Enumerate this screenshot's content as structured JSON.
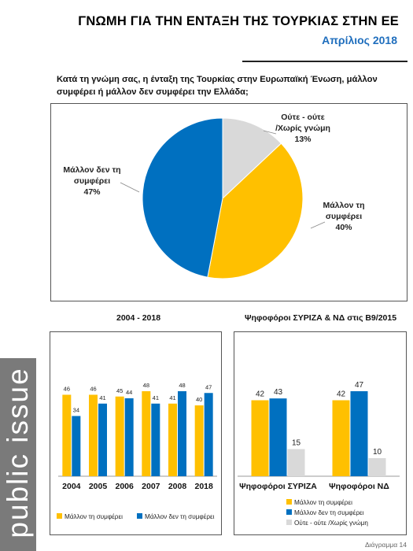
{
  "header": {
    "title": "ΓΝΩΜΗ ΓΙΑ ΤΗΝ ΕΝΤΑΞΗ ΤΗΣ ΤΟΥΡΚΙΑΣ ΣΤΗΝ ΕΕ",
    "subtitle": "Απρίλιος 2018"
  },
  "question": "Κατά τη γνώμη σας, η ένταξη της Τουρκίας στην Ευρωπαϊκή Ένωση, μάλλον συμφέρει ή μάλλον δεν συμφέρει την Ελλάδα;",
  "sidebar": {
    "brand": "public issue",
    "color": "#7a7a7a"
  },
  "footer": {
    "page_label": "Διάγραμμα 14"
  },
  "colors": {
    "yellow": "#ffc000",
    "blue": "#0070c0",
    "grey": "#d9d9d9"
  },
  "chart_data": [
    {
      "type": "pie",
      "slices": [
        {
          "label_lines": [
            "Μάλλον τη",
            "συμφέρει"
          ],
          "value": 40,
          "value_label": "40%",
          "color": "#ffc000"
        },
        {
          "label_lines": [
            "Μάλλον δεν τη",
            "συμφέρει"
          ],
          "value": 47,
          "value_label": "47%",
          "color": "#0070c0"
        },
        {
          "label_lines": [
            "Ούτε - ούτε",
            "/Χωρίς γνώμη"
          ],
          "value": 13,
          "value_label": "13%",
          "color": "#d9d9d9"
        }
      ]
    },
    {
      "type": "bar",
      "title": "2004 - 2018",
      "categories": [
        "2004",
        "2005",
        "2006",
        "2007",
        "2008",
        "2018"
      ],
      "series": [
        {
          "name": "Μάλλον τη συμφέρει",
          "values": [
            46,
            46,
            45,
            48,
            41,
            40
          ],
          "color": "#ffc000"
        },
        {
          "name": "Μάλλον δεν τη συμφέρει",
          "values": [
            34,
            41,
            44,
            41,
            48,
            47
          ],
          "color": "#0070c0"
        }
      ],
      "legend": "bottom"
    },
    {
      "type": "bar",
      "title": "Ψηφοφόροι ΣΥΡΙΖΑ & ΝΔ στις Β9/2015",
      "categories": [
        "Ψηφοφόροι ΣΥΡΙΖΑ",
        "Ψηφοφόροι ΝΔ"
      ],
      "series": [
        {
          "name": "Μάλλον τη συμφέρει",
          "values": [
            42,
            42
          ],
          "color": "#ffc000"
        },
        {
          "name": "Μάλλον δεν τη συμφέρει",
          "values": [
            43,
            47
          ],
          "color": "#0070c0"
        },
        {
          "name": "Ούτε - ούτε /Χωρίς γνώμη",
          "values": [
            15,
            10
          ],
          "color": "#d9d9d9"
        }
      ],
      "legend": "bottom"
    }
  ]
}
